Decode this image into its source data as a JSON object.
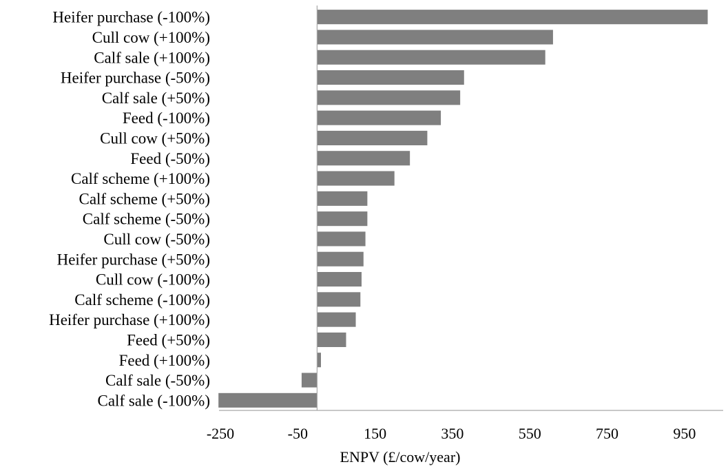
{
  "chart_data": {
    "type": "bar",
    "orientation": "horizontal",
    "title": "",
    "xlabel": "ENPV (£/cow/year)",
    "ylabel": "",
    "xlim": [
      -250,
      1050
    ],
    "xticks": [
      -250,
      -50,
      150,
      350,
      550,
      750,
      950
    ],
    "xtick_labels": [
      "-250",
      "-50",
      "150",
      "350",
      "550",
      "750",
      "950"
    ],
    "grid": false,
    "legend": "none",
    "bar_color": "#7f7f7f",
    "categories": [
      "Heifer purchase (-100%)",
      "Cull cow (+100%)",
      "Calf sale (+100%)",
      "Heifer purchase (-50%)",
      "Calf sale (+50%)",
      "Feed (-100%)",
      "Cull cow (+50%)",
      "Feed (-50%)",
      "Calf scheme (+100%)",
      "Calf scheme (+50%)",
      "Calf scheme (-50%)",
      "Cull cow (-50%)",
      "Heifer purchase (+50%)",
      "Cull cow (-100%)",
      "Calf scheme (-100%)",
      "Heifer purchase  (+100%)",
      "Feed (+50%)",
      "Feed (+100%)",
      "Calf sale (-50%)",
      "Calf sale (-100%)"
    ],
    "values": [
      1010,
      610,
      590,
      380,
      370,
      320,
      285,
      240,
      200,
      130,
      130,
      125,
      120,
      115,
      112,
      100,
      75,
      10,
      -40,
      -255
    ]
  }
}
